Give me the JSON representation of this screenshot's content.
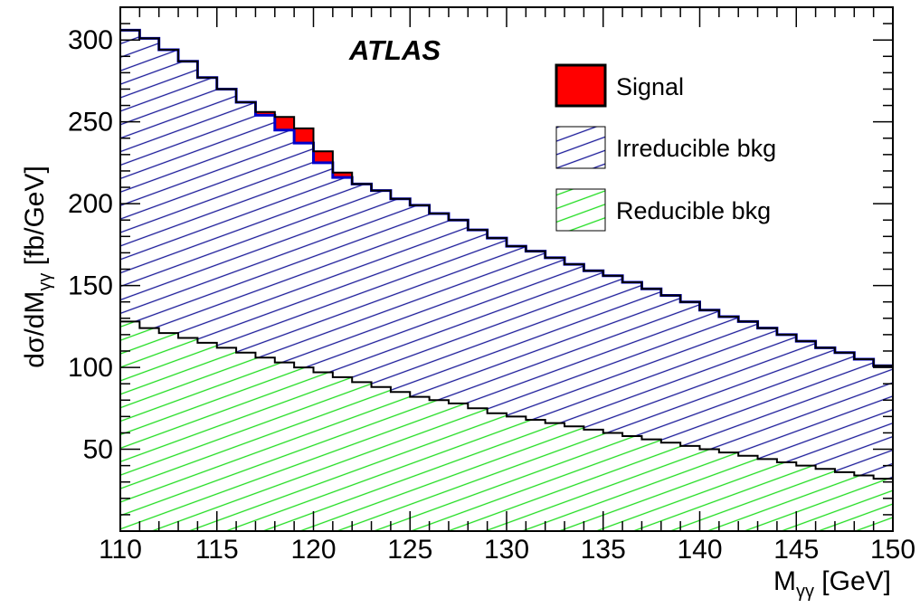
{
  "chart_data": {
    "type": "area",
    "stacked": true,
    "histogram": true,
    "experiment_label": "ATLAS",
    "xlabel": {
      "main": "M",
      "sub": "γγ",
      "suffix": " [GeV]"
    },
    "ylabel": {
      "main": "dσ/dM",
      "sub": "γγ",
      "suffix": " [fb/GeV]"
    },
    "xlim": [
      110,
      150
    ],
    "ylim": [
      0,
      320
    ],
    "x_ticks": [
      110,
      115,
      120,
      125,
      130,
      135,
      140,
      145,
      150
    ],
    "y_ticks": [
      50,
      100,
      150,
      200,
      250,
      300
    ],
    "bin_width": 1,
    "bin_edges_start": 110,
    "legend_position": "top-right",
    "series": [
      {
        "name": "Reducible bkg",
        "style": "hatched",
        "color": "#22dd22",
        "values": [
          128,
          124,
          121,
          118,
          115,
          112,
          109,
          106,
          103,
          100,
          97,
          94,
          91,
          88,
          85,
          82,
          80,
          78,
          75,
          72,
          70,
          68,
          66,
          64,
          62,
          60,
          58,
          56,
          54,
          52,
          50,
          48,
          46,
          44,
          42,
          40,
          38,
          36,
          34,
          32
        ]
      },
      {
        "name": "Irreducible bkg",
        "style": "hatched",
        "color": "#1a1a99",
        "values": [
          178,
          177,
          173,
          169,
          162,
          158,
          153,
          148,
          142,
          137,
          128,
          122,
          121,
          120,
          118,
          117,
          114,
          112,
          109,
          107,
          104,
          103,
          101,
          99,
          97,
          96,
          94,
          92,
          90,
          88,
          85,
          83,
          82,
          80,
          78,
          76,
          74,
          73,
          71,
          69
        ]
      },
      {
        "name": "Signal",
        "style": "solid",
        "color": "#ff0000",
        "values": [
          0,
          0,
          0,
          0,
          0,
          0,
          0,
          2,
          8,
          9,
          7,
          3,
          0,
          0,
          0,
          0,
          0,
          0,
          0,
          0,
          0,
          0,
          0,
          0,
          0,
          0,
          0,
          0,
          0,
          0,
          0,
          0,
          0,
          0,
          0,
          0,
          0,
          0,
          0,
          0
        ]
      }
    ],
    "legend_order": [
      "Signal",
      "Irreducible bkg",
      "Reducible bkg"
    ]
  }
}
